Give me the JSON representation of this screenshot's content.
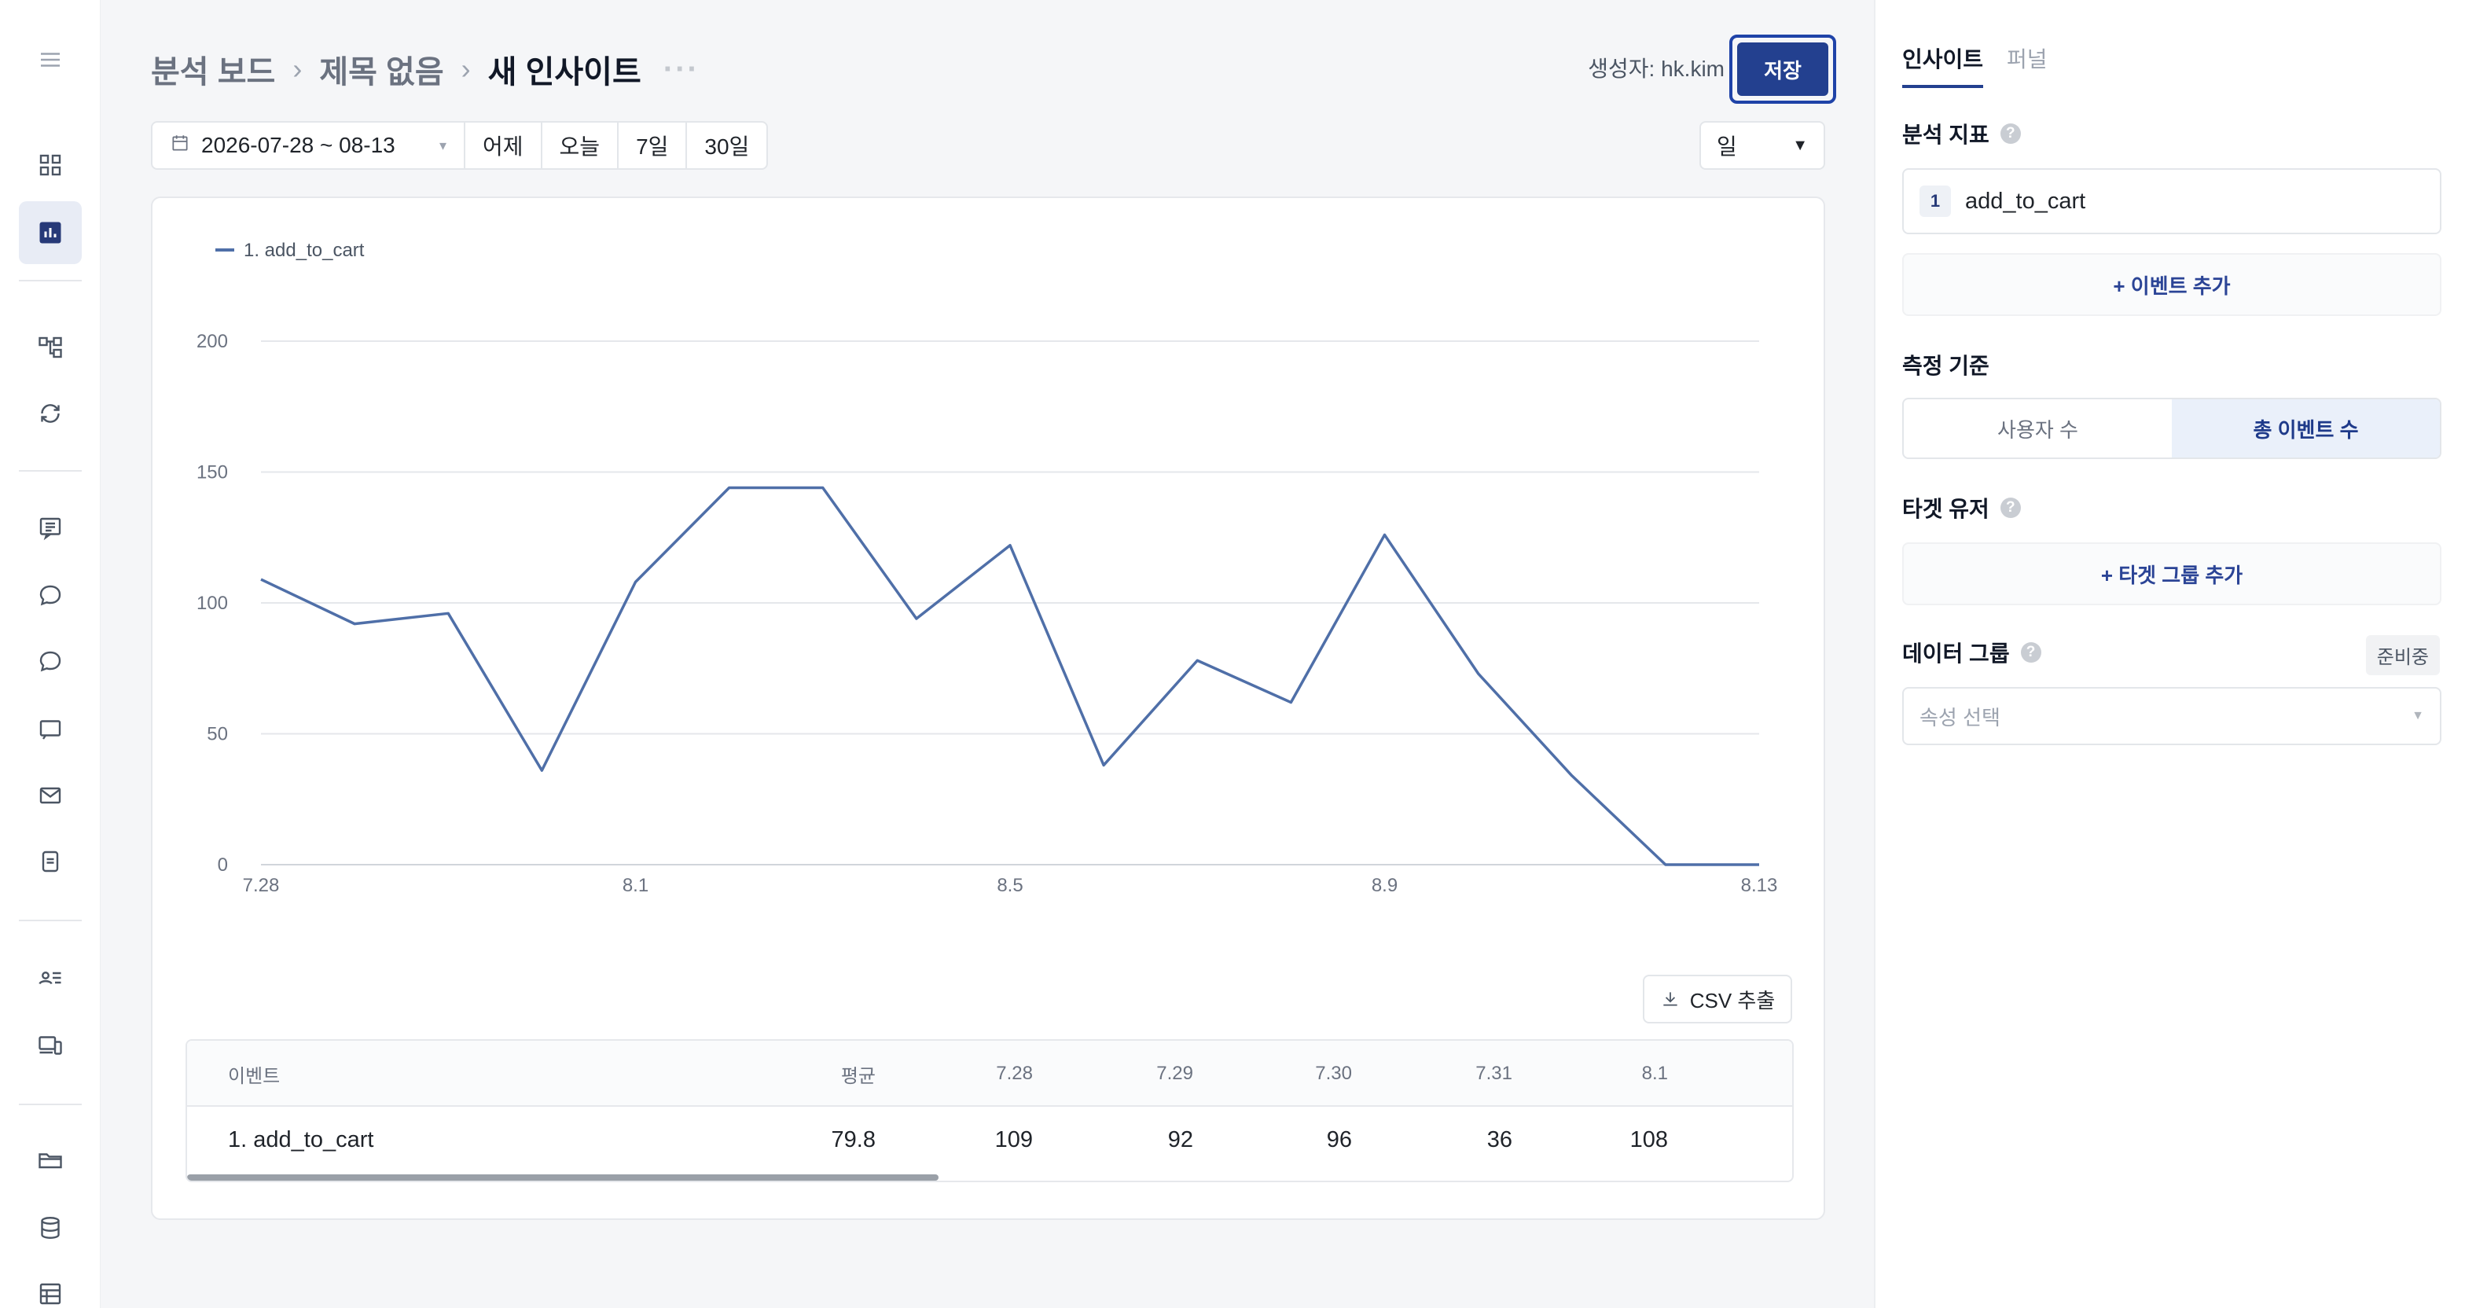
{
  "breadcrumb": {
    "items": [
      "분석 보드",
      "제목 없음"
    ],
    "current": "새 인사이트",
    "more": "···"
  },
  "header": {
    "author": "생성자: hk.kim",
    "save_label": "저장"
  },
  "date_range": {
    "value": "2026-07-28 ~ 08-13",
    "quick": [
      "어제",
      "오늘",
      "7일",
      "30일"
    ]
  },
  "period_select": {
    "value": "일"
  },
  "chart_data": {
    "type": "line",
    "x": [
      "7.28",
      "7.29",
      "7.30",
      "7.31",
      "8.1",
      "8.2",
      "8.3",
      "8.4",
      "8.5",
      "8.6",
      "8.7",
      "8.8",
      "8.9",
      "8.10",
      "8.11",
      "8.12",
      "8.13"
    ],
    "x_tick_labels": [
      "7.28",
      "8.1",
      "8.5",
      "8.9",
      "8.13"
    ],
    "series": [
      {
        "name": "1. add_to_cart",
        "values": [
          109,
          92,
          96,
          36,
          108,
          144,
          144,
          94,
          122,
          38,
          78,
          62,
          126,
          73,
          34,
          0,
          0
        ]
      }
    ],
    "ylim": [
      0,
      200
    ],
    "y_ticks": [
      0,
      50,
      100,
      150,
      200
    ],
    "grid": true,
    "legend_position": "top-left",
    "color": "#4f6fa8"
  },
  "csv_button": {
    "label": "CSV 추출"
  },
  "table": {
    "headers": [
      "이벤트",
      "평균",
      "7.28",
      "7.29",
      "7.30",
      "7.31",
      "8.1"
    ],
    "rows": [
      {
        "event": "1. add_to_cart",
        "avg": "79.8",
        "values": [
          "109",
          "92",
          "96",
          "36",
          "108"
        ]
      }
    ]
  },
  "panel": {
    "tabs": [
      "인사이트",
      "퍼널"
    ],
    "metric_title": "분석 지표",
    "metric": {
      "index": "1",
      "name": "add_to_cart"
    },
    "add_event_label": "+ 이벤트 추가",
    "measure_title": "측정 기준",
    "measure_options": [
      "사용자 수",
      "총 이벤트 수"
    ],
    "target_title": "타겟 유저",
    "add_target_label": "+ 타겟 그룹 추가",
    "data_group_title": "데이터 그룹",
    "data_group_badge": "준비중",
    "attribute_placeholder": "속성 선택"
  },
  "colors": {
    "accent": "#23408f",
    "line": "#4f6fa8",
    "active_tab": "#23408f"
  },
  "rail_icons": [
    "menu-icon",
    "dashboard-icon",
    "analytics-icon",
    "flow-icon",
    "refresh-icon",
    "board-icon",
    "chat-icon",
    "chat-bubble-icon",
    "message-icon",
    "mail-icon",
    "document-icon",
    "users-icon",
    "devices-icon",
    "folder-icon",
    "database-icon",
    "table-icon"
  ]
}
